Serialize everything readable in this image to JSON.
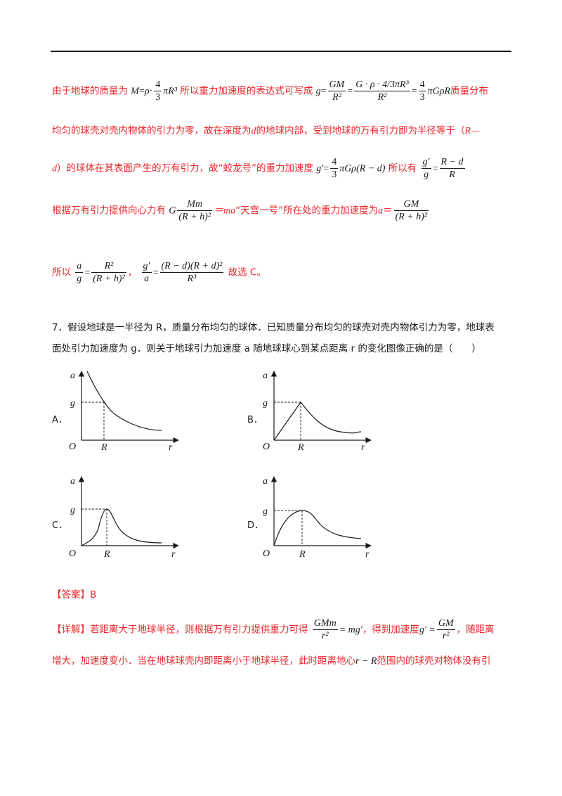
{
  "sol": {
    "l1": {
      "a": "由于地球的质量为",
      "b": "所以重力加速度的表达式可写成",
      "c": "质量分布"
    },
    "l2": "均匀的球壳对壳内物体的引力为零，故在深度为",
    "l2b": "的地球内部，受到地球的万有引力即为半径等于（",
    "l2c": "R—",
    "l3": {
      "a": "d",
      "b": "）的球体在其表面产生的万有引力，故“蛟龙号”的重力加速度",
      "c": "所以有"
    },
    "l4": {
      "a": "根据万有引力提供向心力有",
      "b": "“天宫一号”所在处的重力加速度为",
      "eq": "＝"
    },
    "l5": {
      "a": "所以",
      "b": "，",
      "c": "故选 C。"
    }
  },
  "math": {
    "M": "M",
    "eq": "=",
    "rho": "ρ",
    "dot": "·",
    "four": "4",
    "three": "3",
    "piR3": "πR³",
    "g": "g",
    "GM": "GM",
    "R2": "R²",
    "Gp": "G · ρ · ",
    "piGpR": "πGρR",
    "d": "d",
    "gp": "g′",
    "piGp": "πGρ(R − d)",
    "Rmd": "R − d",
    "R": "R",
    "G": "G",
    "Mm": "Mm",
    "Rh2": "(R + h)²",
    "ma": "＝ma",
    "a": "a",
    "R2b": "R²",
    "Rmd_Rpd2": "(R − d)(R + d)²",
    "R3": "R³",
    "GMm": "GMm",
    "r2": "r²",
    "mgp": "= mg′",
    "gpeq": "g′ =",
    "rR": "r − R"
  },
  "question": {
    "line1": "7．假设地球是一半径为 R，质量分布均匀的球体．已知质量分布均匀的球壳对壳内物体引力为零，地球表",
    "line2": "面处引力加速度为 g．则关于地球引力加速度 a 随地球球心到某点距离 r 的变化图像正确的是（　　）"
  },
  "options": [
    {
      "label": "A．"
    },
    {
      "label": "B．"
    },
    {
      "label": "C．"
    },
    {
      "label": "D．"
    }
  ],
  "graph_text": {
    "a": "a",
    "g": "g",
    "O": "O",
    "R": "R",
    "r": "r"
  },
  "answer": {
    "tag": "【答案】",
    "value": "B"
  },
  "detail": {
    "tag": "【详解】",
    "p1": "若距离大于地球半径，则根据万有引力提供重力可得",
    "p2": "，得到加速度",
    "p3": "，随距离",
    "p4": "增大，加速度变小．当在地球球壳内即距离小于地球半径，此时距离地心",
    "p5": "范围内的球壳对物体没有引"
  },
  "colors": {
    "red": "#e8262a",
    "text": "#1a1a1a"
  }
}
